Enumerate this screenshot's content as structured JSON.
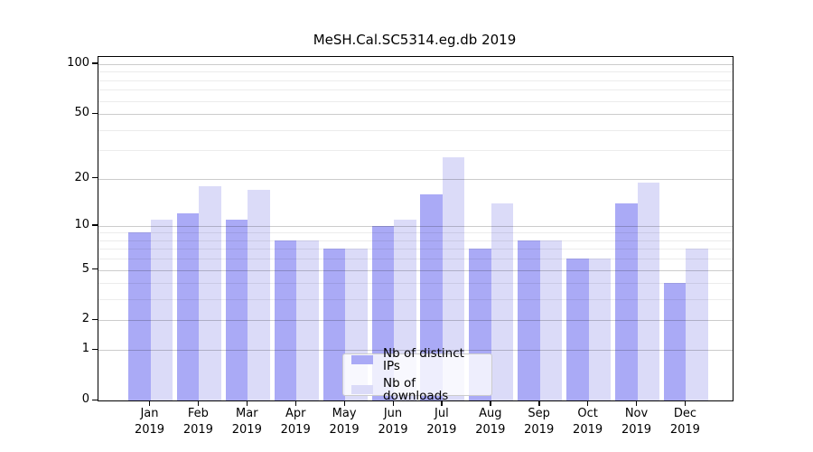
{
  "chart_data": {
    "type": "bar",
    "title": "MeSH.Cal.SC5314.eg.db 2019",
    "categories": [
      "Jan",
      "Feb",
      "Mar",
      "Apr",
      "May",
      "Jun",
      "Jul",
      "Aug",
      "Sep",
      "Oct",
      "Nov",
      "Dec"
    ],
    "category_year": "2019",
    "series": [
      {
        "name": "Nb of distinct IPs",
        "color": "#aaaaf6",
        "values": [
          9,
          12,
          11,
          8,
          7,
          10,
          16,
          7,
          8,
          6,
          14,
          4
        ]
      },
      {
        "name": "Nb of downloads",
        "color": "#dbdbf8",
        "values": [
          11,
          18,
          17,
          8,
          7,
          11,
          27,
          14,
          8,
          6,
          19,
          7
        ]
      }
    ],
    "y_axis": {
      "scale": "log10(1+x)",
      "tick_labels": [
        0,
        1,
        2,
        5,
        10,
        20,
        50,
        100
      ],
      "minor_gridlines": [
        3,
        4,
        6,
        7,
        8,
        9,
        30,
        40,
        60,
        70,
        80,
        90
      ],
      "top_value": 110
    },
    "grid": true,
    "legend_position": "lower center inside"
  }
}
